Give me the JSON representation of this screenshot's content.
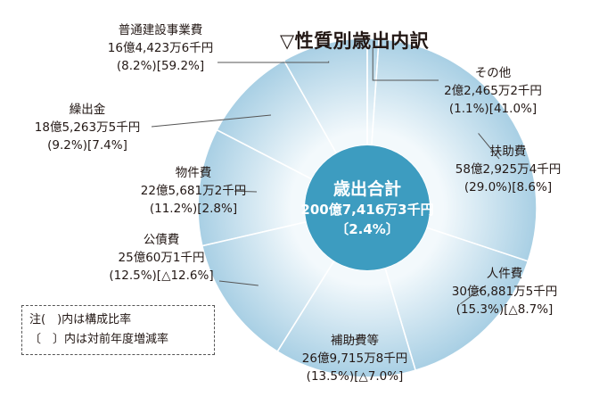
{
  "title": "▽性質別歳出内訳",
  "center": {
    "label": "歳出合計",
    "total": "200億7,416万3千円",
    "change": "〔2.4%〕"
  },
  "note": {
    "line1": "注(　)内は構成比率",
    "line2": "〔　〕内は対前年度増減率"
  },
  "colors": {
    "ring_outer": "#a8cfe4",
    "ring_inner": "#e8f3f9",
    "center_fill": "#3d9cc0",
    "lines": "#555555"
  },
  "chart_data": {
    "type": "pie",
    "title": "▽性質別歳出内訳",
    "center_total": "200億7,416万3千円",
    "center_change_percent": 2.4,
    "slices": [
      {
        "name": "その他",
        "amount": "2億2,465万2千円",
        "share_label": "(1.1%)",
        "change_label": "[41.0%]",
        "share": 1.1,
        "change": 41.0
      },
      {
        "name": "扶助費",
        "amount": "58億2,925万4千円",
        "share_label": "(29.0%)",
        "change_label": "[8.6%]",
        "share": 29.0,
        "change": 8.6
      },
      {
        "name": "人件費",
        "amount": "30億6,881万5千円",
        "share_label": "(15.3%)",
        "change_label": "[△8.7%]",
        "share": 15.3,
        "change": -8.7
      },
      {
        "name": "補助費等",
        "amount": "26億9,715万8千円",
        "share_label": "(13.5%)",
        "change_label": "[△7.0%]",
        "share": 13.5,
        "change": -7.0
      },
      {
        "name": "公債費",
        "amount": "25億60万1千円",
        "share_label": "(12.5%)",
        "change_label": "[△12.6%]",
        "share": 12.5,
        "change": -12.6
      },
      {
        "name": "物件費",
        "amount": "22億5,681万2千円",
        "share_label": "(11.2%)",
        "change_label": "[2.8%]",
        "share": 11.2,
        "change": 2.8
      },
      {
        "name": "繰出金",
        "amount": "18億5,263万5千円",
        "share_label": "(9.2%)",
        "change_label": "[7.4%]",
        "share": 9.2,
        "change": 7.4
      },
      {
        "name": "普通建設事業費",
        "amount": "16億4,423万6千円",
        "share_label": "(8.2%)",
        "change_label": "[59.2%]",
        "share": 8.2,
        "change": 59.2
      }
    ]
  }
}
